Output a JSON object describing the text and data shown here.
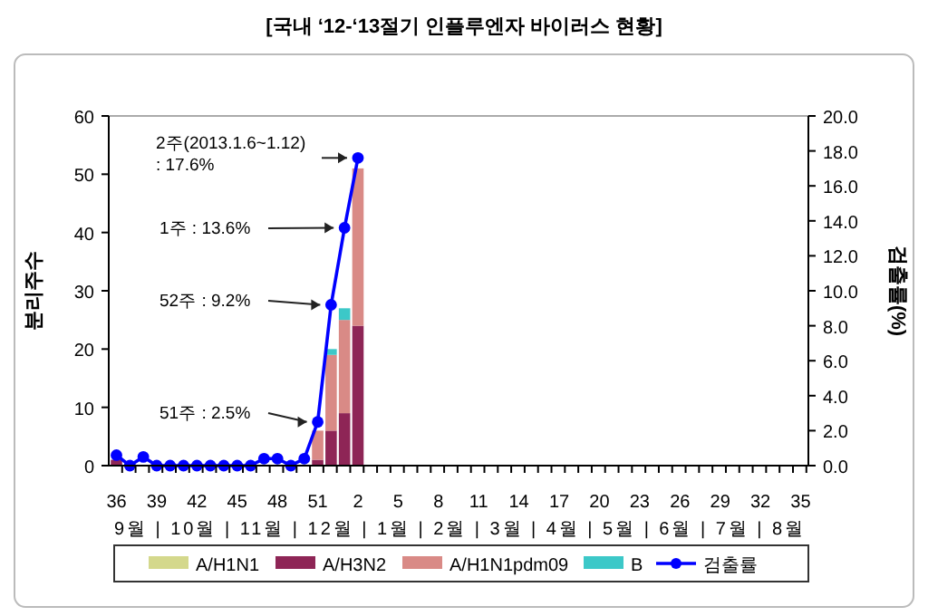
{
  "chart_data": {
    "type": "bar",
    "stacked": true,
    "title": "[국내 ‘12-‘13절기 인플루엔자 바이러스 현황]",
    "ylabel": "분리주수",
    "y2label": "검출률(%)",
    "categories": [
      "36",
      null,
      null,
      "39",
      null,
      null,
      "42",
      null,
      null,
      "45",
      null,
      null,
      "48",
      null,
      null,
      "51",
      null,
      null,
      "2",
      null,
      null,
      "5",
      null,
      null,
      "8",
      null,
      null,
      "11",
      null,
      null,
      "14",
      null,
      null,
      "17",
      null,
      null,
      "20",
      null,
      null,
      "23",
      null,
      null,
      "26",
      null,
      null,
      "29",
      null,
      null,
      "32",
      null,
      null,
      "35"
    ],
    "series": [
      {
        "name": "A/H1N1",
        "color": "#d4d88c",
        "values": [
          0,
          0,
          0,
          0,
          0,
          0,
          0,
          0,
          0,
          0,
          0,
          0,
          0,
          0,
          0,
          0,
          0,
          0,
          0,
          0,
          0,
          0,
          0,
          0,
          0,
          0,
          0,
          0,
          0,
          0,
          0,
          0,
          0,
          0,
          0,
          0,
          0,
          0,
          0,
          0,
          0,
          0,
          0,
          0,
          0,
          0,
          0,
          0,
          0,
          0,
          0,
          0
        ]
      },
      {
        "name": "A/H3N2",
        "color": "#8e2556",
        "values": [
          1,
          0,
          null,
          0,
          0,
          0,
          0,
          0,
          0,
          0,
          0,
          0,
          0,
          0,
          0,
          1,
          6,
          9,
          24,
          0,
          0,
          0,
          0,
          0,
          0,
          0,
          0,
          0,
          0,
          0,
          0,
          0,
          0,
          0,
          0,
          0,
          0,
          0,
          0,
          0,
          0,
          0,
          0,
          0,
          0,
          0,
          0,
          0,
          0,
          0,
          0,
          0
        ]
      },
      {
        "name": "A/H1N1pdm09",
        "color": "#d98a86",
        "values": [
          0,
          0,
          0,
          0,
          0,
          0,
          0,
          0,
          0,
          0,
          0,
          0,
          0,
          0,
          0,
          5,
          13,
          16,
          27,
          0,
          0,
          0,
          0,
          0,
          0,
          0,
          0,
          0,
          0,
          0,
          0,
          0,
          0,
          0,
          0,
          0,
          0,
          0,
          0,
          0,
          0,
          0,
          0,
          0,
          0,
          0,
          0,
          0,
          0,
          0,
          0,
          0
        ]
      },
      {
        "name": "B",
        "color": "#3cc8c8",
        "values": [
          0,
          0,
          0,
          0,
          0,
          0,
          0,
          0,
          0,
          0,
          0,
          0,
          0,
          0,
          0,
          0,
          1,
          2,
          0,
          0,
          0,
          0,
          0,
          0,
          0,
          0,
          0,
          0,
          0,
          0,
          0,
          0,
          0,
          0,
          0,
          0,
          0,
          0,
          0,
          0,
          0,
          0,
          0,
          0,
          0,
          0,
          0,
          0,
          0,
          0,
          0,
          0
        ]
      },
      {
        "name": "검출률",
        "type": "line",
        "axis": "y2",
        "color": "#0000ff",
        "marker": "circle",
        "values": [
          0.6,
          0,
          0.5,
          0,
          0,
          0,
          0,
          0,
          0,
          0,
          0,
          0.4,
          0.4,
          0,
          0.4,
          2.5,
          9.2,
          13.6,
          17.6,
          null,
          null,
          null,
          null,
          null,
          null,
          null,
          null,
          null,
          null,
          null,
          null,
          null,
          null,
          null,
          null,
          null,
          null,
          null,
          null,
          null,
          null,
          null,
          null,
          null,
          null,
          null,
          null,
          null,
          null,
          null,
          null,
          null
        ]
      }
    ],
    "ylim": [
      0,
      60
    ],
    "yticks": [
      0,
      10,
      20,
      30,
      40,
      50,
      60
    ],
    "y2lim": [
      0,
      20
    ],
    "y2ticks": [
      {
        "value": 0,
        "label": "0.0"
      },
      {
        "value": 2,
        "label": "2.0"
      },
      {
        "value": 4,
        "label": "4.0"
      },
      {
        "value": 6,
        "label": "6.0"
      },
      {
        "value": 8,
        "label": "8.0"
      },
      {
        "value": 10,
        "label": "10.0"
      },
      {
        "value": 12,
        "label": "12.0"
      },
      {
        "value": 14,
        "label": "14.0"
      },
      {
        "value": 16,
        "label": "16.0"
      },
      {
        "value": 18,
        "label": "18.0"
      },
      {
        "value": 20,
        "label": "20.0"
      }
    ],
    "annotations": [
      "51주 : 2.5%",
      "52주 : 9.2%",
      "1주 : 13.6%",
      "2주(2013.1.6~1.12)\n: 17.6%",
      "9월 | 10월 | 11월 | 12월 | 1월 | 2월 | 3월 | 4월 | 5월 | 6월 | 7월 | 8월"
    ],
    "legend": "bottom",
    "grid": false
  }
}
